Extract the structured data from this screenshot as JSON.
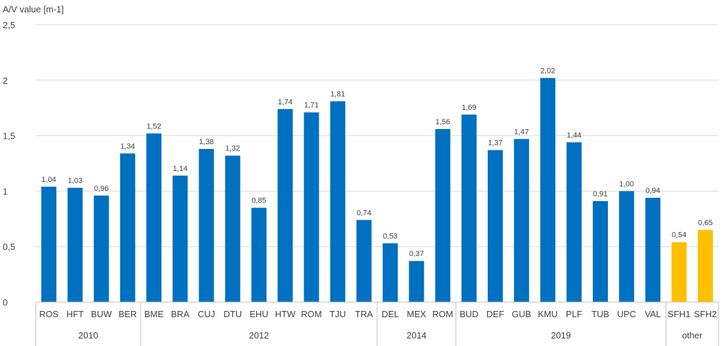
{
  "chart_data": {
    "type": "bar",
    "ylabel": "A/V value [m-1]",
    "ylim": [
      0,
      2.5
    ],
    "yticks": [
      {
        "value": 0,
        "label": "0"
      },
      {
        "value": 0.5,
        "label": "0,5"
      },
      {
        "value": 1,
        "label": "1"
      },
      {
        "value": 1.5,
        "label": "1,5"
      },
      {
        "value": 2,
        "label": "2"
      },
      {
        "value": 2.5,
        "label": "2,5"
      }
    ],
    "grid": true,
    "legend": "none",
    "categories": [
      "ROS",
      "HFT",
      "BUW",
      "BER",
      "BME",
      "BRA",
      "CUJ",
      "DTU",
      "EHU",
      "HTW",
      "ROM",
      "TJU",
      "TRA",
      "DEL",
      "MEX",
      "ROM",
      "BUD",
      "DEF",
      "GUB",
      "KMU",
      "PLF",
      "TUB",
      "UPC",
      "VAL",
      "SFH1",
      "SFH2"
    ],
    "values": [
      1.04,
      1.03,
      0.96,
      1.34,
      1.52,
      1.14,
      1.38,
      1.32,
      0.85,
      1.74,
      1.71,
      1.81,
      0.74,
      0.53,
      0.37,
      1.56,
      1.69,
      1.37,
      1.47,
      2.02,
      1.44,
      0.91,
      1.0,
      0.94,
      0.54,
      0.65
    ],
    "data_labels": [
      "1,04",
      "1,03",
      "0,96",
      "1,34",
      "1,52",
      "1,14",
      "1,38",
      "1,32",
      "0,85",
      "1,74",
      "1,71",
      "1,81",
      "0,74",
      "0,53",
      "0,37",
      "1,56",
      "1,69",
      "1,37",
      "1,47",
      "2,02",
      "1,44",
      "0,91",
      "1,00",
      "0,94",
      "0,54",
      "0,65"
    ],
    "groups": [
      {
        "label": "2010",
        "count": 4
      },
      {
        "label": "2012",
        "count": 9
      },
      {
        "label": "2014",
        "count": 3
      },
      {
        "label": "2019",
        "count": 8
      },
      {
        "label": "other",
        "count": 2
      }
    ],
    "colors": {
      "default": "#0070C0",
      "other": "#FFC000",
      "grid": "#d9d9d9",
      "axis": "#bfbfbf",
      "text": "#404040"
    }
  }
}
